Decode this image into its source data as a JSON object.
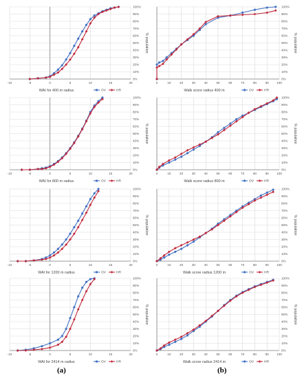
{
  "figure": {
    "panel_labels": [
      "(a)",
      "(b)"
    ]
  },
  "colors": {
    "OV": "#4472c4",
    "HR": "#c0283a",
    "grid": "#d9d9d9",
    "axis": "#808080"
  },
  "chart_data": [
    {
      "type": "line",
      "column": "a",
      "xlabel": "WAI for 400 m radius",
      "ylabel": "% population",
      "xlim": [
        -10,
        20
      ],
      "xticks": [
        -10,
        -5,
        0,
        5,
        10,
        15,
        20
      ],
      "ylim": [
        0,
        100
      ],
      "yticks": [
        0,
        10,
        20,
        30,
        40,
        50,
        60,
        70,
        80,
        90,
        100
      ],
      "grid": true,
      "legend": "bottom-right",
      "series": [
        {
          "name": "OV",
          "x": [
            -5,
            -3,
            -1,
            0,
            1,
            2,
            3,
            4,
            5,
            6,
            7,
            8,
            9,
            10,
            11,
            12,
            13,
            14,
            15,
            16,
            17
          ],
          "y": [
            0,
            1,
            2,
            4,
            8,
            13,
            19,
            27,
            36,
            46,
            56,
            66,
            75,
            83,
            88,
            91,
            94,
            96,
            98,
            99,
            100
          ]
        },
        {
          "name": "HR",
          "x": [
            -5,
            -3,
            -1,
            0,
            1,
            2,
            3,
            4,
            5,
            6,
            7,
            8,
            9,
            10,
            11,
            12,
            13,
            14,
            15,
            16,
            17
          ],
          "y": [
            0,
            1,
            2,
            3,
            6,
            9,
            14,
            20,
            27,
            35,
            44,
            55,
            66,
            77,
            85,
            90,
            93,
            95,
            97,
            99,
            100
          ]
        }
      ]
    },
    {
      "type": "line",
      "column": "b",
      "xlabel": "Walk score radius 400 m",
      "ylabel": "% population",
      "xlim": [
        0,
        100
      ],
      "xticks": [
        0,
        10,
        20,
        30,
        40,
        50,
        60,
        70,
        80,
        90,
        100
      ],
      "ylim": [
        0,
        100
      ],
      "yticks": [
        0,
        10,
        20,
        30,
        40,
        50,
        60,
        70,
        80,
        90,
        100
      ],
      "grid": true,
      "legend": "bottom-right",
      "series": [
        {
          "name": "OV",
          "x": [
            0,
            0,
            2,
            5,
            8,
            12,
            16,
            20,
            25,
            30,
            35,
            40,
            50,
            60,
            70,
            80,
            90,
            97
          ],
          "y": [
            0,
            20,
            23,
            25,
            30,
            36,
            42,
            48,
            54,
            60,
            68,
            76,
            85,
            88,
            92,
            96,
            99,
            100
          ]
        },
        {
          "name": "HR",
          "x": [
            0,
            0,
            2,
            5,
            8,
            12,
            16,
            20,
            25,
            30,
            35,
            40,
            50,
            60,
            70,
            80,
            90,
            97
          ],
          "y": [
            0,
            16,
            18,
            21,
            27,
            34,
            41,
            48,
            55,
            62,
            70,
            79,
            87,
            88,
            89,
            90,
            92,
            95
          ]
        }
      ]
    },
    {
      "type": "line",
      "column": "a",
      "xlabel": "WAI for 800 m radius",
      "ylabel": "% population",
      "xlim": [
        -10,
        20
      ],
      "xticks": [
        -10,
        -5,
        0,
        5,
        10,
        15,
        20
      ],
      "ylim": [
        0,
        100
      ],
      "yticks": [
        0,
        10,
        20,
        30,
        40,
        50,
        60,
        70,
        80,
        90,
        100
      ],
      "grid": true,
      "legend": "bottom-right",
      "series": [
        {
          "name": "OV",
          "x": [
            -7,
            -5,
            -3,
            -2,
            -1,
            0,
            1,
            2,
            3,
            4,
            5,
            6,
            7,
            8,
            9,
            10,
            11,
            12,
            13
          ],
          "y": [
            0,
            0,
            1,
            2,
            3,
            5,
            8,
            12,
            17,
            23,
            30,
            38,
            47,
            57,
            68,
            80,
            89,
            95,
            100
          ]
        },
        {
          "name": "HR",
          "x": [
            -7,
            -5,
            -3,
            -2,
            -1,
            0,
            1,
            2,
            3,
            4,
            5,
            6,
            7,
            8,
            9,
            10,
            11,
            12,
            13
          ],
          "y": [
            0,
            0,
            1,
            1,
            2,
            4,
            7,
            11,
            16,
            22,
            29,
            37,
            46,
            56,
            67,
            78,
            87,
            93,
            98
          ]
        }
      ]
    },
    {
      "type": "line",
      "column": "b",
      "xlabel": "Walk score radius 800 m",
      "ylabel": "% population",
      "xlim": [
        0,
        100
      ],
      "xticks": [
        0,
        10,
        20,
        30,
        40,
        50,
        60,
        70,
        80,
        90,
        100
      ],
      "ylim": [
        0,
        100
      ],
      "yticks": [
        0,
        10,
        20,
        30,
        40,
        50,
        60,
        70,
        80,
        90,
        100
      ],
      "grid": true,
      "legend": "bottom-right",
      "series": [
        {
          "name": "OV",
          "x": [
            0,
            2,
            5,
            10,
            15,
            20,
            25,
            30,
            35,
            40,
            45,
            50,
            55,
            60,
            65,
            70,
            75,
            80,
            85,
            90,
            95,
            98
          ],
          "y": [
            0,
            3,
            6,
            10,
            14,
            18,
            23,
            28,
            33,
            39,
            45,
            52,
            58,
            64,
            70,
            75,
            79,
            83,
            87,
            91,
            95,
            98
          ]
        },
        {
          "name": "HR",
          "x": [
            0,
            2,
            5,
            10,
            15,
            20,
            25,
            30,
            35,
            40,
            45,
            50,
            55,
            60,
            65,
            70,
            75,
            80,
            85,
            90,
            95,
            98
          ],
          "y": [
            0,
            4,
            8,
            13,
            17,
            22,
            27,
            31,
            35,
            39,
            44,
            49,
            55,
            61,
            67,
            73,
            79,
            84,
            88,
            92,
            96,
            100
          ]
        }
      ]
    },
    {
      "type": "line",
      "column": "a",
      "xlabel": "WAI for 1200 m radius",
      "ylabel": "% population",
      "xlim": [
        -10,
        20
      ],
      "xticks": [
        -10,
        -5,
        0,
        5,
        10,
        15,
        20
      ],
      "ylim": [
        0,
        100
      ],
      "yticks": [
        0,
        10,
        20,
        30,
        40,
        50,
        60,
        70,
        80,
        90,
        100
      ],
      "grid": true,
      "legend": "bottom-right",
      "series": [
        {
          "name": "OV",
          "x": [
            -8,
            -6,
            -4,
            -2,
            -1,
            0,
            1,
            2,
            3,
            4,
            5,
            6,
            7,
            8,
            9,
            10,
            11,
            12
          ],
          "y": [
            0,
            0,
            1,
            3,
            5,
            8,
            12,
            17,
            23,
            30,
            38,
            47,
            56,
            66,
            76,
            86,
            94,
            100
          ]
        },
        {
          "name": "HR",
          "x": [
            -8,
            -6,
            -4,
            -2,
            -1,
            0,
            1,
            2,
            3,
            4,
            5,
            6,
            7,
            8,
            9,
            10,
            11,
            12
          ],
          "y": [
            0,
            0,
            1,
            2,
            3,
            5,
            8,
            12,
            17,
            23,
            30,
            38,
            47,
            57,
            67,
            78,
            88,
            97
          ]
        }
      ]
    },
    {
      "type": "line",
      "column": "b",
      "xlabel": "Walk score radius 1200 m",
      "ylabel": "% population",
      "xlim": [
        0,
        100
      ],
      "xticks": [
        0,
        10,
        20,
        30,
        40,
        50,
        60,
        70,
        80,
        90,
        100
      ],
      "ylim": [
        0,
        100
      ],
      "yticks": [
        0,
        10,
        20,
        30,
        40,
        50,
        60,
        70,
        80,
        90,
        100
      ],
      "grid": true,
      "legend": "bottom-right",
      "series": [
        {
          "name": "OV",
          "x": [
            0,
            3,
            6,
            10,
            15,
            20,
            25,
            30,
            35,
            40,
            45,
            50,
            55,
            60,
            65,
            70,
            75,
            80,
            85,
            90,
            95
          ],
          "y": [
            0,
            2,
            5,
            9,
            13,
            17,
            22,
            27,
            33,
            39,
            45,
            52,
            58,
            64,
            70,
            76,
            81,
            86,
            91,
            95,
            99
          ]
        },
        {
          "name": "HR",
          "x": [
            0,
            3,
            6,
            10,
            15,
            20,
            25,
            30,
            35,
            40,
            45,
            50,
            55,
            60,
            65,
            70,
            75,
            80,
            85,
            90,
            95
          ],
          "y": [
            0,
            4,
            8,
            13,
            18,
            22,
            26,
            30,
            34,
            39,
            44,
            50,
            56,
            62,
            68,
            74,
            79,
            84,
            88,
            92,
            96
          ]
        }
      ]
    },
    {
      "type": "line",
      "column": "a",
      "xlabel": "WAI for 2414 m radius",
      "ylabel": "% population",
      "xlim": [
        -10,
        20
      ],
      "xticks": [
        -10,
        -5,
        0,
        5,
        10,
        15,
        20
      ],
      "ylim": [
        0,
        100
      ],
      "yticks": [
        0,
        10,
        20,
        30,
        40,
        50,
        60,
        70,
        80,
        90,
        100
      ],
      "grid": true,
      "legend": "bottom-right",
      "series": [
        {
          "name": "OV",
          "x": [
            -8,
            -6,
            -4,
            -2,
            0,
            2,
            3,
            4,
            5,
            6,
            7,
            8,
            9,
            10,
            11
          ],
          "y": [
            0,
            1,
            3,
            6,
            10,
            15,
            20,
            30,
            45,
            60,
            75,
            87,
            95,
            99,
            100
          ]
        },
        {
          "name": "HR",
          "x": [
            -8,
            -6,
            -4,
            -2,
            0,
            2,
            3,
            4,
            5,
            6,
            7,
            8,
            9,
            10,
            11
          ],
          "y": [
            0,
            0,
            1,
            2,
            4,
            8,
            12,
            19,
            30,
            43,
            57,
            70,
            82,
            92,
            99
          ]
        }
      ]
    },
    {
      "type": "line",
      "column": "b",
      "xlabel": "Walk score radius 2414 m",
      "ylabel": "% population",
      "xlim": [
        0,
        100
      ],
      "xticks": [
        0,
        10,
        20,
        30,
        40,
        50,
        60,
        70,
        80,
        90,
        100
      ],
      "ylim": [
        0,
        100
      ],
      "yticks": [
        0,
        10,
        20,
        30,
        40,
        50,
        60,
        70,
        80,
        90,
        100
      ],
      "grid": true,
      "legend": "bottom-right",
      "series": [
        {
          "name": "OV",
          "x": [
            0,
            3,
            6,
            10,
            15,
            20,
            25,
            30,
            35,
            40,
            45,
            50,
            55,
            60,
            65,
            70,
            75,
            80,
            85,
            90,
            95
          ],
          "y": [
            0,
            2,
            5,
            8,
            12,
            16,
            21,
            27,
            33,
            40,
            47,
            55,
            63,
            70,
            76,
            81,
            85,
            89,
            92,
            95,
            98
          ]
        },
        {
          "name": "HR",
          "x": [
            0,
            3,
            6,
            10,
            15,
            20,
            25,
            30,
            35,
            40,
            45,
            50,
            55,
            60,
            65,
            70,
            75,
            80,
            85,
            90,
            95
          ],
          "y": [
            0,
            3,
            7,
            11,
            15,
            19,
            24,
            29,
            35,
            41,
            48,
            55,
            62,
            69,
            75,
            80,
            84,
            88,
            91,
            94,
            97
          ]
        }
      ]
    }
  ]
}
